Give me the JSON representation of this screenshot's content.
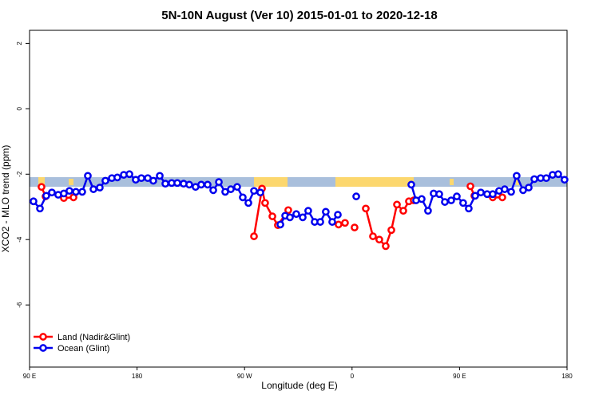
{
  "chart_data": {
    "type": "line",
    "title": "5N-10N August (Ver 10)   2015-01-01 to 2020-12-18",
    "x_label": "Longitude (deg E)",
    "y_label": "XCO2 - MLO trend (ppm)",
    "xlim": [
      90,
      540
    ],
    "ylim": [
      -7.9,
      2.4
    ],
    "xticks": [
      {
        "value": 90,
        "label": "90 E"
      },
      180,
      {
        "value": 270,
        "label": "90 W"
      },
      {
        "value": 360,
        "label": "0"
      },
      {
        "value": 450,
        "label": "90 E"
      },
      180
    ],
    "yticks": [
      2,
      0,
      -2,
      -4,
      -6
    ],
    "legend": "bottom-left",
    "series": [
      {
        "name": "Land (Nadir&Glint)",
        "color": "#ff0000",
        "x": [
          100,
          103.4,
          null,
          118.7,
          126.8,
          null,
          277.9,
          284.6,
          287.2,
          293.3,
          297.9,
          306.6,
          null,
          348.7,
          354.1,
          null,
          362.1,
          null,
          371.5,
          377.5,
          382.8,
          388.2,
          392.9,
          397.6,
          402.9,
          407.6,
          411.6,
          null,
          459.1,
          462.4,
          null,
          477.8,
          485.8
        ],
        "values": [
          -2.39,
          -2.68,
          null,
          -2.73,
          -2.71,
          null,
          -3.9,
          -2.44,
          -2.88,
          -3.29,
          -3.56,
          -3.1,
          null,
          -3.54,
          -3.49,
          null,
          -3.63,
          null,
          -3.05,
          -3.9,
          -4.0,
          -4.2,
          -3.71,
          -2.93,
          -3.12,
          -2.83,
          -2.8,
          null,
          -2.37,
          -2.66,
          null,
          -2.71,
          -2.71
        ]
      },
      {
        "name": "Ocean (Glint)",
        "color": "#0000ee",
        "x": [
          93.3,
          98.7,
          104,
          108.7,
          114,
          118.7,
          123.4,
          128.8,
          134.1,
          138.8,
          143.5,
          148.8,
          153.5,
          158.9,
          163.5,
          168.9,
          173.6,
          178.9,
          183.6,
          189,
          193.6,
          199,
          203.7,
          209,
          213.7,
          219,
          223.7,
          229,
          233.7,
          239.1,
          243.8,
          248.5,
          253.8,
          258.5,
          263.8,
          268.5,
          273.2,
          277.9,
          283.2,
          null,
          300,
          304,
          308,
          313.3,
          318.7,
          323.3,
          328.7,
          333.4,
          338,
          343.4,
          348.1,
          null,
          363.5,
          null,
          409.6,
          413.6,
          418.3,
          423.6,
          428.3,
          433,
          437.7,
          443,
          447.7,
          453,
          457.7,
          463.1,
          467.8,
          473.1,
          477.8,
          483.1,
          487.8,
          493.2,
          497.8,
          503.2,
          507.9,
          512.6,
          517.9,
          522.6,
          527.9,
          532.6,
          537.9
        ],
        "values": [
          -2.83,
          -3.05,
          -2.66,
          -2.56,
          -2.63,
          -2.59,
          -2.51,
          -2.54,
          -2.54,
          -2.05,
          -2.46,
          -2.41,
          -2.2,
          -2.12,
          -2.1,
          -2.02,
          -2.0,
          -2.17,
          -2.12,
          -2.12,
          -2.2,
          -2.05,
          -2.29,
          -2.27,
          -2.27,
          -2.29,
          -2.32,
          -2.39,
          -2.32,
          -2.32,
          -2.49,
          -2.24,
          -2.54,
          -2.46,
          -2.39,
          -2.71,
          -2.88,
          -2.51,
          -2.56,
          null,
          -3.54,
          -3.27,
          -3.32,
          -3.22,
          -3.32,
          -3.12,
          -3.46,
          -3.46,
          -3.15,
          -3.46,
          -3.24,
          null,
          -2.68,
          null,
          -2.32,
          -2.8,
          -2.76,
          -3.12,
          -2.59,
          -2.61,
          -2.85,
          -2.8,
          -2.68,
          -2.88,
          -3.05,
          -2.66,
          -2.56,
          -2.61,
          -2.61,
          -2.51,
          -2.46,
          -2.54,
          -2.05,
          -2.49,
          -2.41,
          -2.15,
          -2.12,
          -2.12,
          -2.02,
          -2.0,
          -2.17
        ]
      }
    ]
  }
}
